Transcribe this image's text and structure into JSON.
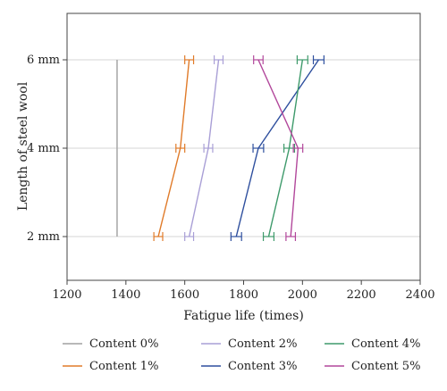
{
  "chart_data": {
    "type": "line",
    "orientation": "horizontal",
    "xlabel": "Fatigue life (times)",
    "ylabel": "Length of steel wool",
    "xlim": [
      1200,
      2400
    ],
    "xticks": [
      "1200",
      "1400",
      "1600",
      "1800",
      "2000",
      "2200",
      "2400"
    ],
    "categories": [
      "2 mm",
      "4 mm",
      "6 mm"
    ],
    "grid": "horizontal",
    "legend_position": "bottom",
    "series": [
      {
        "name": "Content 0%",
        "color": "#a0a0a0",
        "values": [
          1370,
          1370,
          1370
        ],
        "error": null
      },
      {
        "name": "Content 1%",
        "color": "#e07b2a",
        "values": [
          1510,
          1585,
          1615
        ],
        "error": 15
      },
      {
        "name": "Content 2%",
        "color": "#a99fd6",
        "values": [
          1615,
          1680,
          1715
        ],
        "error": 15
      },
      {
        "name": "Content 3%",
        "color": "#2e4f9e",
        "values": [
          1775,
          1850,
          2055
        ],
        "error": 18
      },
      {
        "name": "Content 4%",
        "color": "#3e9a6b",
        "values": [
          1885,
          1955,
          2000
        ],
        "error": 18
      },
      {
        "name": "Content 5%",
        "color": "#b2479b",
        "values": [
          1960,
          1985,
          1850
        ],
        "error": 16
      }
    ]
  }
}
